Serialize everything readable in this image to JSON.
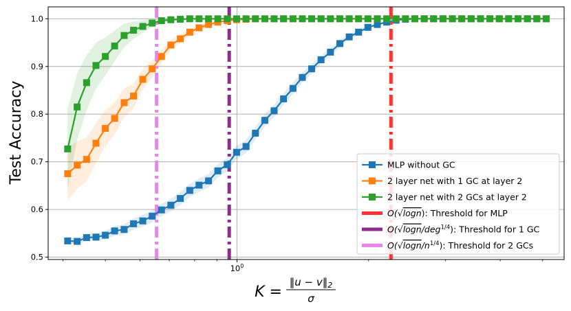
{
  "chart_data": {
    "type": "line",
    "ylabel": "Test Accuracy",
    "xlabel": "K = ‖u − v‖₂ / σ",
    "xlabel_parts": {
      "lhs": "K =",
      "numerator": "‖u − v‖",
      "numerator_sub": "2",
      "denominator": "σ"
    },
    "x_scale": "log",
    "xlim": [
      0.37,
      5.6
    ],
    "ylim": [
      0.495,
      1.025
    ],
    "x_tick_labels": [
      {
        "value": 1.0,
        "label": "10",
        "exp": "0"
      }
    ],
    "y_tick_labels": [
      {
        "value": 0.5,
        "label": "0.5"
      },
      {
        "value": 0.6,
        "label": "0.6"
      },
      {
        "value": 0.7,
        "label": "0.7"
      },
      {
        "value": 0.8,
        "label": "0.8"
      },
      {
        "value": 0.9,
        "label": "0.9"
      },
      {
        "value": 1.0,
        "label": "1.0"
      }
    ],
    "grid": true,
    "legend_position": "lower-right",
    "x": [
      0.41,
      0.431,
      0.453,
      0.476,
      0.5,
      0.525,
      0.552,
      0.58,
      0.609,
      0.64,
      0.672,
      0.706,
      0.742,
      0.78,
      0.819,
      0.861,
      0.904,
      0.95,
      0.998,
      1.049,
      1.102,
      1.158,
      1.216,
      1.278,
      1.343,
      1.411,
      1.482,
      1.557,
      1.636,
      1.719,
      1.806,
      1.897,
      1.993,
      2.094,
      2.2,
      2.311,
      2.429,
      2.551,
      2.681,
      2.816,
      2.959,
      3.109,
      3.266,
      3.432,
      3.606,
      3.788,
      3.98,
      4.182,
      4.393,
      4.616,
      4.85,
      5.095
    ],
    "series": [
      {
        "name": "MLP without GC",
        "color": "#1f77b4",
        "marker": "square",
        "x": [
          0.41,
          0.431,
          0.453,
          0.476,
          0.5,
          0.525,
          0.552,
          0.58,
          0.609,
          0.64,
          0.672,
          0.706,
          0.742,
          0.78,
          0.819,
          0.861,
          0.904,
          0.95,
          0.998,
          1.049,
          1.102,
          1.158,
          1.216,
          1.278,
          1.343,
          1.411,
          1.482,
          1.557,
          1.636,
          1.719,
          1.806,
          1.897,
          1.993,
          2.094,
          2.2,
          2.311,
          2.429,
          2.551,
          2.681,
          2.816,
          2.959,
          3.109,
          3.266,
          3.432,
          3.606,
          3.788,
          3.98,
          4.182,
          4.393,
          4.616,
          4.85,
          5.095
        ],
        "values": [
          0.534,
          0.533,
          0.541,
          0.542,
          0.546,
          0.555,
          0.558,
          0.57,
          0.576,
          0.586,
          0.599,
          0.609,
          0.623,
          0.64,
          0.651,
          0.66,
          0.681,
          0.694,
          0.72,
          0.732,
          0.76,
          0.787,
          0.807,
          0.832,
          0.854,
          0.877,
          0.895,
          0.914,
          0.93,
          0.948,
          0.962,
          0.972,
          0.982,
          0.988,
          0.993,
          0.997,
          0.999,
          1.0,
          1.0,
          1.0,
          1.0,
          1.0,
          1.0,
          1.0,
          1.0,
          1.0,
          1.0,
          1.0,
          1.0,
          1.0,
          1.0,
          1.0
        ],
        "band": [
          0.006,
          0.006,
          0.007,
          0.008,
          0.009,
          0.01,
          0.011,
          0.012,
          0.012,
          0.013,
          0.013,
          0.013,
          0.014,
          0.014,
          0.014,
          0.014,
          0.014,
          0.014,
          0.014,
          0.014,
          0.013,
          0.013,
          0.013,
          0.012,
          0.012,
          0.011,
          0.01,
          0.009,
          0.008,
          0.007,
          0.006,
          0.005,
          0.004,
          0.003,
          0.002,
          0.002,
          0.001,
          0.001,
          0.0,
          0.0,
          0.0,
          0.0,
          0.0,
          0.0,
          0.0,
          0.0,
          0.0,
          0.0,
          0.0,
          0.0,
          0.0,
          0.0
        ]
      },
      {
        "name": "2 layer net with 1 GC at layer 2",
        "color": "#ff7f0e",
        "marker": "square",
        "x": [
          0.41,
          0.431,
          0.453,
          0.476,
          0.5,
          0.525,
          0.552,
          0.58,
          0.609,
          0.64,
          0.672,
          0.706,
          0.742,
          0.78,
          0.819,
          0.861,
          0.904,
          0.95,
          0.998,
          1.049,
          1.102,
          1.158,
          1.216,
          1.278,
          1.343,
          1.411,
          1.482,
          1.557,
          1.636,
          1.719,
          1.806,
          1.897,
          1.993,
          2.094,
          2.2,
          2.311,
          2.429,
          2.551,
          2.681,
          2.816,
          2.959,
          3.109,
          3.266,
          3.432,
          3.606,
          3.788,
          3.98,
          4.182,
          4.393,
          4.616,
          4.85,
          5.095
        ],
        "values": [
          0.675,
          0.693,
          0.705,
          0.739,
          0.77,
          0.791,
          0.824,
          0.838,
          0.873,
          0.895,
          0.921,
          0.945,
          0.958,
          0.972,
          0.981,
          0.988,
          0.993,
          0.996,
          0.998,
          0.999,
          1.0,
          1.0,
          1.0,
          1.0,
          1.0,
          1.0,
          1.0,
          1.0,
          1.0,
          1.0,
          1.0,
          1.0,
          1.0,
          1.0,
          1.0,
          1.0,
          1.0,
          1.0,
          1.0,
          1.0,
          1.0,
          1.0,
          1.0,
          1.0,
          1.0,
          1.0,
          1.0,
          1.0,
          1.0,
          1.0,
          1.0,
          1.0
        ],
        "band": [
          0.055,
          0.05,
          0.046,
          0.042,
          0.038,
          0.034,
          0.03,
          0.026,
          0.022,
          0.018,
          0.014,
          0.011,
          0.009,
          0.007,
          0.005,
          0.004,
          0.003,
          0.002,
          0.001,
          0.001,
          0.0,
          0.0,
          0.0,
          0.0,
          0.0,
          0.0,
          0.0,
          0.0,
          0.0,
          0.0,
          0.0,
          0.0,
          0.0,
          0.0,
          0.0,
          0.0,
          0.0,
          0.0,
          0.0,
          0.0,
          0.0,
          0.0,
          0.0,
          0.0,
          0.0,
          0.0,
          0.0,
          0.0,
          0.0,
          0.0,
          0.0,
          0.0
        ]
      },
      {
        "name": "2 layer net with 2 GCs at layer 2",
        "color": "#2ca02c",
        "marker": "square",
        "x": [
          0.41,
          0.431,
          0.453,
          0.476,
          0.5,
          0.525,
          0.552,
          0.58,
          0.609,
          0.64,
          0.672,
          0.706,
          0.742,
          0.78,
          0.819,
          0.861,
          0.904,
          0.95,
          0.998,
          1.049,
          1.102,
          1.158,
          1.216,
          1.278,
          1.343,
          1.411,
          1.482,
          1.557,
          1.636,
          1.719,
          1.806,
          1.897,
          1.993,
          2.094,
          2.2,
          2.311,
          2.429,
          2.551,
          2.681,
          2.816,
          2.959,
          3.109,
          3.266,
          3.432,
          3.606,
          3.788,
          3.98,
          4.182,
          4.393,
          4.616,
          4.85,
          5.095
        ],
        "values": [
          0.727,
          0.815,
          0.866,
          0.902,
          0.921,
          0.943,
          0.965,
          0.976,
          0.984,
          0.991,
          0.996,
          0.998,
          0.999,
          1.0,
          1.0,
          1.0,
          1.0,
          1.0,
          1.0,
          1.0,
          1.0,
          1.0,
          1.0,
          1.0,
          1.0,
          1.0,
          1.0,
          1.0,
          1.0,
          1.0,
          1.0,
          1.0,
          1.0,
          1.0,
          1.0,
          1.0,
          1.0,
          1.0,
          1.0,
          1.0,
          1.0,
          1.0,
          1.0,
          1.0,
          1.0,
          1.0,
          1.0,
          1.0,
          1.0,
          1.0,
          1.0,
          1.0
        ],
        "band": [
          0.085,
          0.07,
          0.058,
          0.048,
          0.04,
          0.032,
          0.025,
          0.018,
          0.013,
          0.009,
          0.006,
          0.003,
          0.002,
          0.001,
          0.0,
          0.0,
          0.0,
          0.0,
          0.0,
          0.0,
          0.0,
          0.0,
          0.0,
          0.0,
          0.0,
          0.0,
          0.0,
          0.0,
          0.0,
          0.0,
          0.0,
          0.0,
          0.0,
          0.0,
          0.0,
          0.0,
          0.0,
          0.0,
          0.0,
          0.0,
          0.0,
          0.0,
          0.0,
          0.0,
          0.0,
          0.0,
          0.0,
          0.0,
          0.0,
          0.0,
          0.0,
          0.0
        ]
      }
    ],
    "thresholds": [
      {
        "name": "O(√logn): Threshold for MLP",
        "x": 2.25,
        "color": "#ff3333"
      },
      {
        "name": "O(√logn/deg^1/4): Threshold for 1 GC",
        "x": 0.96,
        "color": "#8e2c8e"
      },
      {
        "name": "O(√logn/n^1/4): Threshold for 2 GCs",
        "x": 0.655,
        "color": "#ee82ee"
      }
    ],
    "legend": [
      {
        "key": "mlp",
        "text": "MLP without GC"
      },
      {
        "key": "gc1",
        "text": "2 layer net with 1 GC at layer 2"
      },
      {
        "key": "gc2",
        "text": "2 layer net with 2 GCs at layer 2"
      },
      {
        "key": "t_mlp",
        "prefix": "O(",
        "root": "logn",
        "tail": "",
        "exp": "",
        "suffix": "): Threshold for MLP"
      },
      {
        "key": "t_gc1",
        "prefix": "O(",
        "root": "logn",
        "tail": "/deg",
        "exp": "1/4",
        "suffix": "): Threshold for 1 GC"
      },
      {
        "key": "t_gc2",
        "prefix": "O(",
        "root": "logn",
        "tail": "/n",
        "exp": "1/4",
        "suffix": "): Threshold for 2 GCs"
      }
    ]
  }
}
